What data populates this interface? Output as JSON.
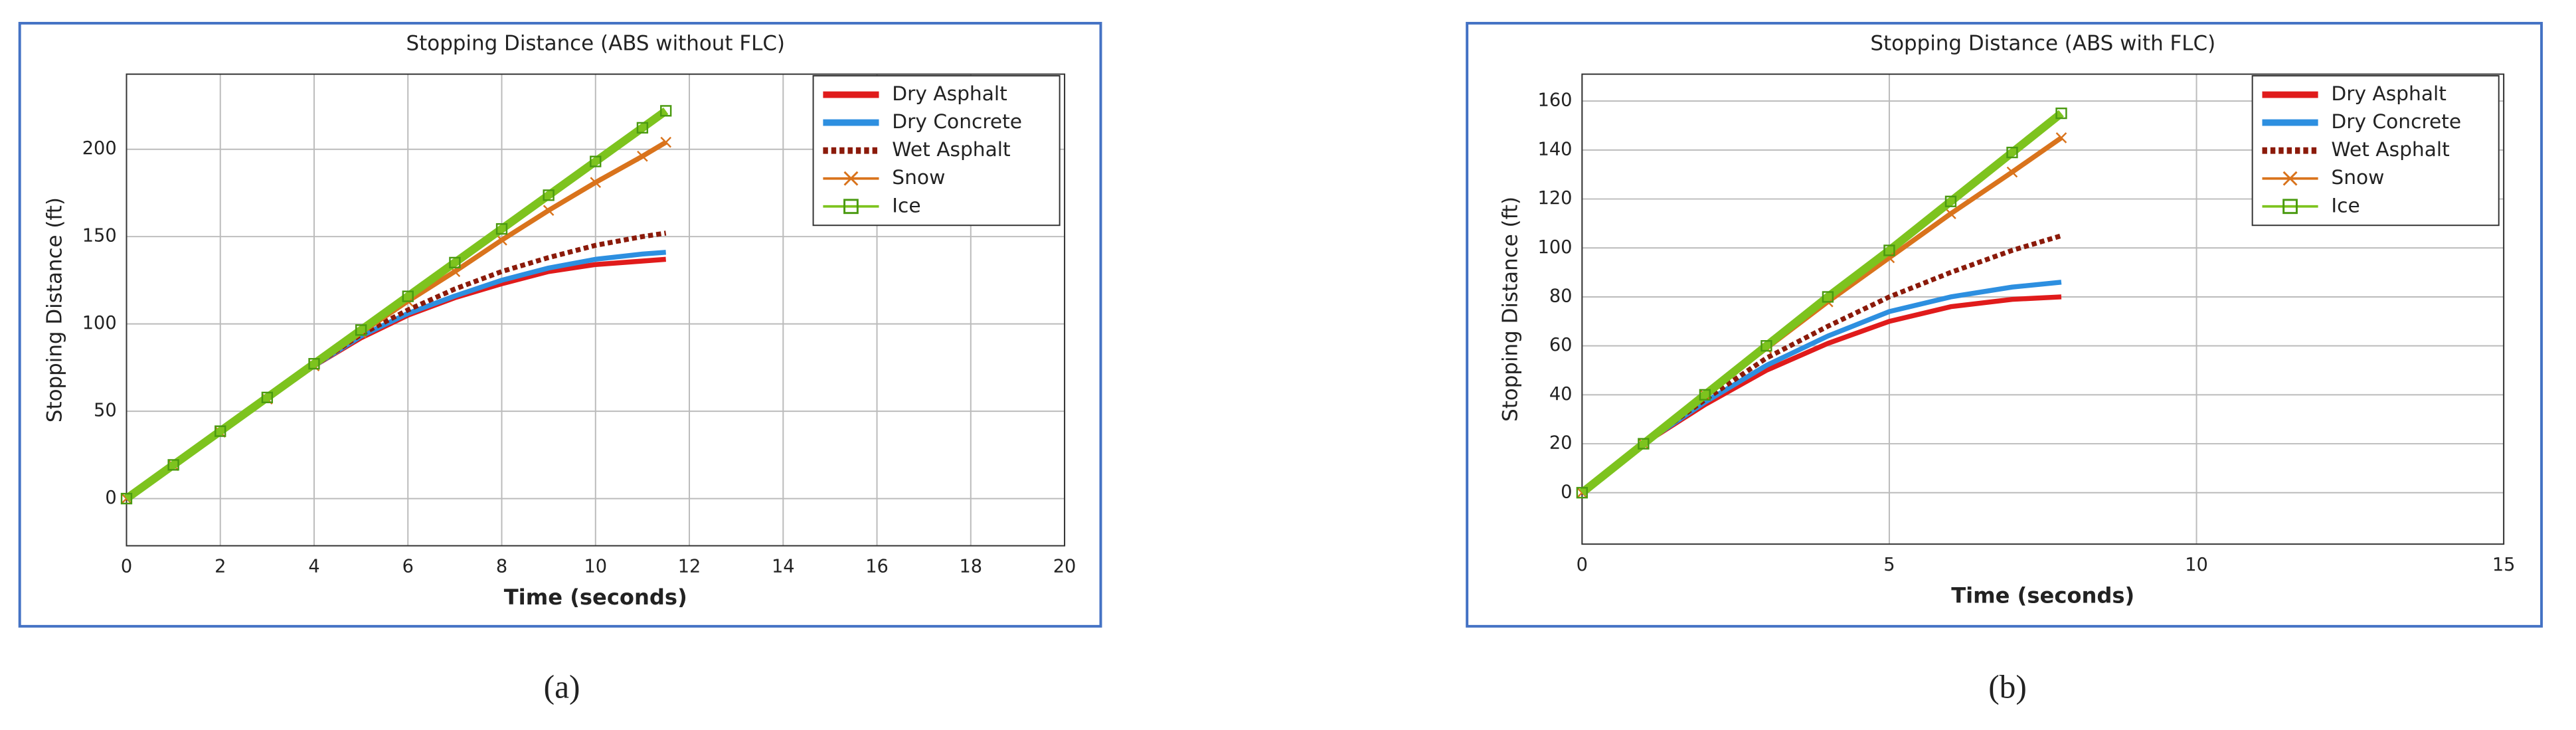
{
  "chart_data": [
    {
      "type": "line",
      "title": "Stopping Distance (ABS without FLC)",
      "xlabel": "Time (seconds)",
      "ylabel": "Stopping Distance (ft)",
      "panel_label": "(a)",
      "x": [
        0,
        1,
        2,
        3,
        4,
        5,
        6,
        7,
        8,
        9,
        10,
        11,
        11.5
      ],
      "xlim": [
        0,
        20
      ],
      "xticks": [
        0,
        2,
        4,
        6,
        8,
        10,
        12,
        14,
        16,
        18,
        20
      ],
      "ylim": [
        -27,
        243
      ],
      "yticks": [
        0,
        50,
        100,
        150,
        200
      ],
      "grid": true,
      "legend": "upper right",
      "series": [
        {
          "name": "Dry Asphalt",
          "color": "#e01b1b",
          "linestyle": "solid",
          "values": [
            0,
            19,
            38,
            57,
            76,
            92,
            105,
            115,
            123,
            130,
            134,
            136,
            137
          ]
        },
        {
          "name": "Dry Concrete",
          "color": "#2d8fe0",
          "linestyle": "solid",
          "values": [
            0,
            19,
            38,
            57,
            76,
            93,
            106,
            116,
            125,
            132,
            137,
            140,
            141
          ]
        },
        {
          "name": "Wet Asphalt",
          "color": "#8b1a0a",
          "linestyle": "dotted",
          "values": [
            0,
            19,
            38,
            57,
            76,
            94,
            108,
            120,
            130,
            138,
            145,
            150,
            152
          ]
        },
        {
          "name": "Snow",
          "color": "#d9731c",
          "linestyle": "solid",
          "marker": "x",
          "values": [
            0,
            19,
            38,
            57,
            76,
            95,
            113,
            130,
            148,
            165,
            181,
            196,
            204
          ]
        },
        {
          "name": "Ice",
          "color": "#7dc31e",
          "linestyle": "solid",
          "marker": "square",
          "values": [
            0,
            19.3,
            38.6,
            57.9,
            77.2,
            96.5,
            115.8,
            135.1,
            154.4,
            173.7,
            193,
            212.3,
            222
          ]
        }
      ]
    },
    {
      "type": "line",
      "title": "Stopping Distance (ABS with FLC)",
      "xlabel": "Time (seconds)",
      "ylabel": "Stopping Distance (ft)",
      "panel_label": "(b)",
      "x": [
        0,
        1,
        2,
        3,
        4,
        5,
        6,
        7,
        7.8
      ],
      "xlim": [
        0,
        15
      ],
      "xticks": [
        0,
        5,
        10,
        15
      ],
      "ylim": [
        -21,
        171
      ],
      "yticks": [
        0,
        20,
        40,
        60,
        80,
        100,
        120,
        140,
        160
      ],
      "grid": true,
      "legend": "upper right",
      "series": [
        {
          "name": "Dry Asphalt",
          "color": "#e01b1b",
          "linestyle": "solid",
          "values": [
            0,
            20,
            36,
            50,
            61,
            70,
            76,
            79,
            80
          ]
        },
        {
          "name": "Dry Concrete",
          "color": "#2d8fe0",
          "linestyle": "solid",
          "values": [
            0,
            20,
            37,
            52,
            64,
            74,
            80,
            84,
            86
          ]
        },
        {
          "name": "Wet Asphalt",
          "color": "#8b1a0a",
          "linestyle": "dotted",
          "values": [
            0,
            20,
            38,
            55,
            68,
            80,
            90,
            99,
            105
          ]
        },
        {
          "name": "Snow",
          "color": "#d9731c",
          "linestyle": "solid",
          "marker": "x",
          "values": [
            0,
            20,
            40,
            59,
            78,
            96,
            114,
            131,
            145
          ]
        },
        {
          "name": "Ice",
          "color": "#7dc31e",
          "linestyle": "solid",
          "marker": "square",
          "values": [
            0,
            20,
            40,
            60,
            80,
            99,
            119,
            139,
            155
          ]
        }
      ]
    }
  ]
}
